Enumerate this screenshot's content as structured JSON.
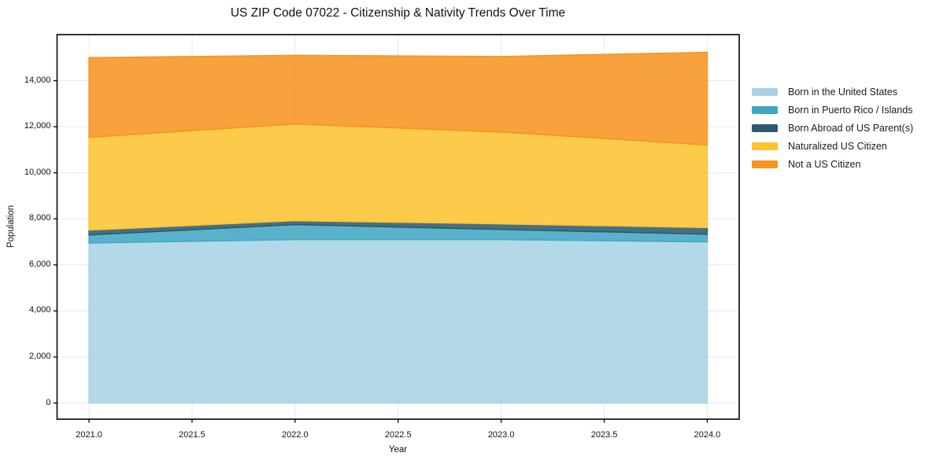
{
  "chart_data": {
    "type": "area",
    "stacked": true,
    "title": "US ZIP Code 07022 - Citizenship & Nativity Trends Over Time",
    "xlabel": "Year",
    "ylabel": "Population",
    "x": [
      2021,
      2022,
      2023,
      2024
    ],
    "series": [
      {
        "name": "Born in the United States",
        "color": "#a8d3e6",
        "values": [
          6950,
          7100,
          7100,
          7000
        ]
      },
      {
        "name": "Born in Puerto Rico / Islands",
        "color": "#41a6c2",
        "values": [
          350,
          650,
          440,
          330
        ]
      },
      {
        "name": "Born Abroad of US Parent(s)",
        "color": "#2b5a70",
        "values": [
          210,
          170,
          240,
          290
        ]
      },
      {
        "name": "Naturalized US Citizen",
        "color": "#fcc330",
        "values": [
          4030,
          4200,
          3990,
          3590
        ]
      },
      {
        "name": "Not a US Citizen",
        "color": "#f6941f",
        "values": [
          3460,
          2980,
          3280,
          4020
        ]
      }
    ],
    "totals": [
      15000,
      15100,
      15050,
      15230
    ],
    "xlim": [
      2020.845,
      2024.155
    ],
    "ylim": [
      -700,
      16000
    ],
    "x_ticks": [
      2021.0,
      2021.5,
      2022.0,
      2022.5,
      2023.0,
      2023.5,
      2024.0
    ],
    "x_tick_labels": [
      "2021.0",
      "2021.5",
      "2022.0",
      "2022.5",
      "2023.0",
      "2023.5",
      "2024.0"
    ],
    "y_ticks": [
      0,
      2000,
      4000,
      6000,
      8000,
      10000,
      12000,
      14000
    ],
    "y_tick_labels": [
      "0",
      "2,000",
      "4,000",
      "6,000",
      "8,000",
      "10,000",
      "12,000",
      "14,000"
    ],
    "grid": true,
    "grid_color": "#e9e9e9",
    "spine_color": "#111111",
    "legend_position": "right"
  }
}
